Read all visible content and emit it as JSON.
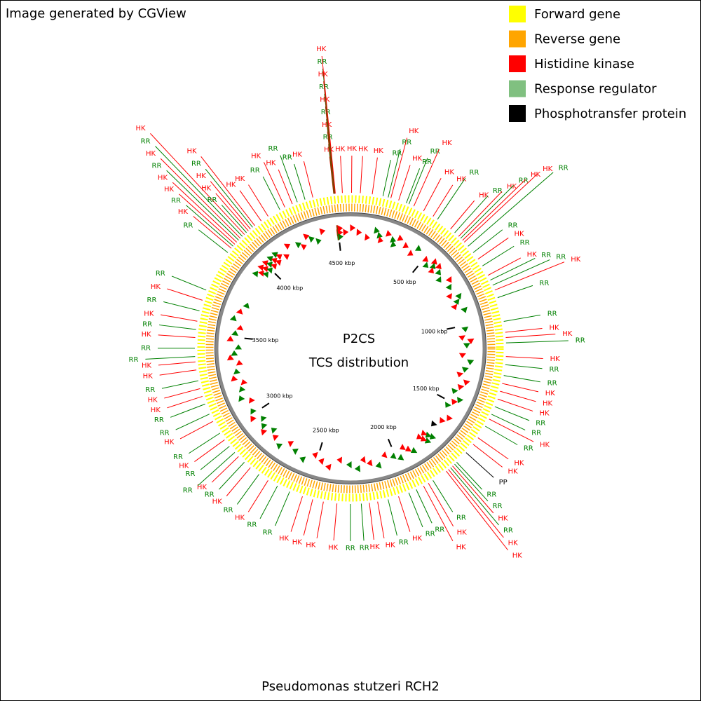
{
  "header": {
    "title": "Image generated by CGView"
  },
  "legend": [
    {
      "label": "Forward gene",
      "color": "#ffff00"
    },
    {
      "label": "Reverse gene",
      "color": "#ffa500"
    },
    {
      "label": "Histidine kinase",
      "color": "#ff0000"
    },
    {
      "label": "Response regulator",
      "color": "#80c080"
    },
    {
      "label": "Phosphotransfer protein",
      "color": "#000000"
    }
  ],
  "center": {
    "title": "P2CS",
    "subtitle": "TCS distribution"
  },
  "footer": {
    "title": "Pseudomonas stutzeri RCH2"
  },
  "map": {
    "range": [
      0,
      4575
    ],
    "ticks": [
      {
        "value": 500,
        "label": "500 kbp"
      },
      {
        "value": 1000,
        "label": "1000 kbp"
      },
      {
        "value": 1500,
        "label": "1500 kbp"
      },
      {
        "value": 2000,
        "label": "2000 kbp"
      },
      {
        "value": 2500,
        "label": "2500 kbp"
      },
      {
        "value": 3000,
        "label": "3000 kbp"
      },
      {
        "value": 3500,
        "label": "3500 kbp"
      },
      {
        "value": 4000,
        "label": "4000 kbp"
      },
      {
        "value": 4500,
        "label": "4500 kbp"
      }
    ],
    "features": [
      {
        "label": "HK",
        "position": 5,
        "color": "#ff0000"
      },
      {
        "label": "HK",
        "position": 46,
        "color": "#ff0000"
      },
      {
        "label": "HK",
        "position": 102,
        "color": "#ff0000"
      },
      {
        "label": "RR",
        "position": 153,
        "color": "#008000"
      },
      {
        "label": "RR",
        "position": 178,
        "color": "#008000"
      },
      {
        "label": "HK",
        "position": 191,
        "color": "#ff0000"
      },
      {
        "label": "HK",
        "position": 229,
        "color": "#ff0000"
      },
      {
        "label": "RR",
        "position": 267,
        "color": "#008000"
      },
      {
        "label": "RR",
        "position": 280,
        "color": "#008000"
      },
      {
        "label": "HK",
        "position": 305,
        "color": "#ff0000"
      },
      {
        "label": "HK",
        "position": 356,
        "color": "#ff0000"
      },
      {
        "label": "HK",
        "position": 407,
        "color": "#ff0000"
      },
      {
        "label": "RR",
        "position": 432,
        "color": "#008000"
      },
      {
        "label": "HK",
        "position": 508,
        "color": "#ff0000"
      },
      {
        "label": "RR",
        "position": 534,
        "color": "#008000"
      },
      {
        "label": "HK",
        "position": 559,
        "color": "#ff0000"
      },
      {
        "label": "RR",
        "position": 572,
        "color": "#008000"
      },
      {
        "label": "HK",
        "position": 585,
        "color": "#ff0000"
      },
      {
        "label": "HK",
        "position": 597,
        "color": "#ff0000"
      },
      {
        "label": "RR",
        "position": 623,
        "color": "#008000"
      },
      {
        "label": "RR",
        "position": 661,
        "color": "#008000"
      },
      {
        "label": "HK",
        "position": 699,
        "color": "#ff0000"
      },
      {
        "label": "RR",
        "position": 737,
        "color": "#008000"
      },
      {
        "label": "HK",
        "position": 788,
        "color": "#ff0000"
      },
      {
        "label": "RR",
        "position": 813,
        "color": "#008000"
      },
      {
        "label": "RR",
        "position": 839,
        "color": "#008000"
      },
      {
        "label": "HK",
        "position": 864,
        "color": "#ff0000"
      },
      {
        "label": "RR",
        "position": 902,
        "color": "#008000"
      },
      {
        "label": "RR",
        "position": 1017,
        "color": "#008000"
      },
      {
        "label": "HK",
        "position": 1068,
        "color": "#ff0000"
      },
      {
        "label": "HK",
        "position": 1093,
        "color": "#ff0000"
      },
      {
        "label": "RR",
        "position": 1118,
        "color": "#008000"
      },
      {
        "label": "HK",
        "position": 1182,
        "color": "#ff0000"
      },
      {
        "label": "RR",
        "position": 1220,
        "color": "#008000"
      },
      {
        "label": "RR",
        "position": 1271,
        "color": "#008000"
      },
      {
        "label": "HK",
        "position": 1309,
        "color": "#ff0000"
      },
      {
        "label": "HK",
        "position": 1347,
        "color": "#ff0000"
      },
      {
        "label": "HK",
        "position": 1385,
        "color": "#ff0000"
      },
      {
        "label": "RR",
        "position": 1423,
        "color": "#008000"
      },
      {
        "label": "RR",
        "position": 1462,
        "color": "#008000"
      },
      {
        "label": "HK",
        "position": 1487,
        "color": "#ff0000"
      },
      {
        "label": "RR",
        "position": 1525,
        "color": "#008000"
      },
      {
        "label": "HK",
        "position": 1589,
        "color": "#ff0000"
      },
      {
        "label": "HK",
        "position": 1627,
        "color": "#ff0000"
      },
      {
        "label": "PP",
        "position": 1678,
        "color": "#000000"
      },
      {
        "label": "RR",
        "position": 1741,
        "color": "#008000"
      },
      {
        "label": "RR",
        "position": 1754,
        "color": "#008000"
      },
      {
        "label": "HK",
        "position": 1767,
        "color": "#ff0000"
      },
      {
        "label": "RR",
        "position": 1779,
        "color": "#008000"
      },
      {
        "label": "HK",
        "position": 1792,
        "color": "#ff0000"
      },
      {
        "label": "HK",
        "position": 1805,
        "color": "#ff0000"
      },
      {
        "label": "RR",
        "position": 1881,
        "color": "#008000"
      },
      {
        "label": "HK",
        "position": 1906,
        "color": "#ff0000"
      },
      {
        "label": "HK",
        "position": 1932,
        "color": "#ff0000"
      },
      {
        "label": "RR",
        "position": 1970,
        "color": "#008000"
      },
      {
        "label": "RR",
        "position": 2008,
        "color": "#008000"
      },
      {
        "label": "HK",
        "position": 2059,
        "color": "#ff0000"
      },
      {
        "label": "RR",
        "position": 2110,
        "color": "#008000"
      },
      {
        "label": "HK",
        "position": 2160,
        "color": "#ff0000"
      },
      {
        "label": "HK",
        "position": 2199,
        "color": "#ff0000"
      },
      {
        "label": "RR",
        "position": 2237,
        "color": "#008000"
      },
      {
        "label": "RR",
        "position": 2288,
        "color": "#008000"
      },
      {
        "label": "HK",
        "position": 2351,
        "color": "#ff0000"
      },
      {
        "label": "HK",
        "position": 2415,
        "color": "#ff0000"
      },
      {
        "label": "HK",
        "position": 2466,
        "color": "#ff0000"
      },
      {
        "label": "HK",
        "position": 2516,
        "color": "#ff0000"
      },
      {
        "label": "RR",
        "position": 2580,
        "color": "#008000"
      },
      {
        "label": "RR",
        "position": 2643,
        "color": "#008000"
      },
      {
        "label": "HK",
        "position": 2694,
        "color": "#ff0000"
      },
      {
        "label": "RR",
        "position": 2745,
        "color": "#008000"
      },
      {
        "label": "HK",
        "position": 2796,
        "color": "#ff0000"
      },
      {
        "label": "RR",
        "position": 2834,
        "color": "#008000"
      },
      {
        "label": "HK",
        "position": 2872,
        "color": "#ff0000"
      },
      {
        "label": "RR",
        "position": 2898,
        "color": "#008000"
      },
      {
        "label": "RR",
        "position": 2936,
        "color": "#008000"
      },
      {
        "label": "HK",
        "position": 2974,
        "color": "#ff0000"
      },
      {
        "label": "RR",
        "position": 3012,
        "color": "#008000"
      },
      {
        "label": "HK",
        "position": 3076,
        "color": "#ff0000"
      },
      {
        "label": "RR",
        "position": 3114,
        "color": "#008000"
      },
      {
        "label": "RR",
        "position": 3165,
        "color": "#008000"
      },
      {
        "label": "HK",
        "position": 3203,
        "color": "#ff0000"
      },
      {
        "label": "HK",
        "position": 3241,
        "color": "#ff0000"
      },
      {
        "label": "RR",
        "position": 3279,
        "color": "#008000"
      },
      {
        "label": "HK",
        "position": 3330,
        "color": "#ff0000"
      },
      {
        "label": "HK",
        "position": 3368,
        "color": "#ff0000"
      },
      {
        "label": "RR",
        "position": 3393,
        "color": "#008000"
      },
      {
        "label": "RR",
        "position": 3432,
        "color": "#008000"
      },
      {
        "label": "HK",
        "position": 3482,
        "color": "#ff0000"
      },
      {
        "label": "RR",
        "position": 3520,
        "color": "#008000"
      },
      {
        "label": "HK",
        "position": 3559,
        "color": "#ff0000"
      },
      {
        "label": "RR",
        "position": 3609,
        "color": "#008000"
      },
      {
        "label": "HK",
        "position": 3660,
        "color": "#ff0000"
      },
      {
        "label": "RR",
        "position": 3711,
        "color": "#008000"
      },
      {
        "label": "RR",
        "position": 3914,
        "color": "#008000"
      },
      {
        "label": "HK",
        "position": 3940,
        "color": "#ff0000"
      },
      {
        "label": "RR",
        "position": 3953,
        "color": "#008000"
      },
      {
        "label": "HK",
        "position": 3965,
        "color": "#ff0000"
      },
      {
        "label": "HK",
        "position": 3978,
        "color": "#ff0000"
      },
      {
        "label": "RR",
        "position": 3991,
        "color": "#008000"
      },
      {
        "label": "HK",
        "position": 4003,
        "color": "#ff0000"
      },
      {
        "label": "RR",
        "position": 4016,
        "color": "#008000"
      },
      {
        "label": "HK",
        "position": 4029,
        "color": "#ff0000"
      },
      {
        "label": "RR",
        "position": 4042,
        "color": "#008000"
      },
      {
        "label": "HK",
        "position": 4054,
        "color": "#ff0000"
      },
      {
        "label": "HK",
        "position": 4067,
        "color": "#ff0000"
      },
      {
        "label": "RR",
        "position": 4080,
        "color": "#008000"
      },
      {
        "label": "HK",
        "position": 4093,
        "color": "#ff0000"
      },
      {
        "label": "HK",
        "position": 4130,
        "color": "#ff0000"
      },
      {
        "label": "HK",
        "position": 4169,
        "color": "#ff0000"
      },
      {
        "label": "RR",
        "position": 4232,
        "color": "#008000"
      },
      {
        "label": "HK",
        "position": 4258,
        "color": "#ff0000"
      },
      {
        "label": "HK",
        "position": 4296,
        "color": "#ff0000"
      },
      {
        "label": "RR",
        "position": 4321,
        "color": "#008000"
      },
      {
        "label": "RR",
        "position": 4359,
        "color": "#008000"
      },
      {
        "label": "HK",
        "position": 4397,
        "color": "#ff0000"
      },
      {
        "label": "HK",
        "position": 4496,
        "color": "#ff0000"
      },
      {
        "label": "RR",
        "position": 4497,
        "color": "#008000"
      },
      {
        "label": "HK",
        "position": 4498,
        "color": "#ff0000"
      },
      {
        "label": "RR",
        "position": 4499,
        "color": "#008000"
      },
      {
        "label": "HK",
        "position": 4500,
        "color": "#ff0000"
      },
      {
        "label": "RR",
        "position": 4501,
        "color": "#008000"
      },
      {
        "label": "HK",
        "position": 4502,
        "color": "#ff0000"
      },
      {
        "label": "RR",
        "position": 4503,
        "color": "#008000"
      },
      {
        "label": "HK",
        "position": 4504,
        "color": "#ff0000"
      },
      {
        "label": "HK",
        "position": 4537,
        "color": "#ff0000"
      }
    ]
  }
}
